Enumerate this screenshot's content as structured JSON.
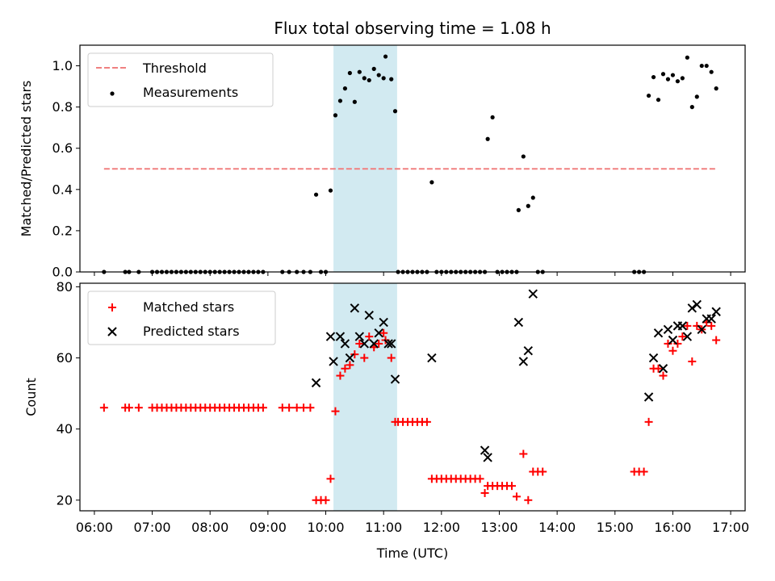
{
  "chart_data": [
    {
      "type": "scatter",
      "title": "Flux total observing time = 1.08 h",
      "xlabel": "",
      "ylabel": "Matched/Predicted stars",
      "xlim": [
        "05:45",
        "17:15"
      ],
      "ylim": [
        0,
        1.1
      ],
      "yticks": [
        "0.0",
        "0.2",
        "0.4",
        "0.6",
        "0.8",
        "1.0"
      ],
      "grid": false,
      "legend": "upper-left",
      "highlight_interval": [
        "10:08",
        "11:14"
      ],
      "highlight_color": "#add8e6",
      "threshold": {
        "name": "Threshold",
        "value": 0.5,
        "x": [
          "06:10",
          "16:45"
        ],
        "color": "#f08080",
        "style": "dashed"
      },
      "series": [
        {
          "name": "Measurements",
          "color": "#000000",
          "marker": "dot",
          "points": [
            [
              "06:10",
              0
            ],
            [
              "06:32",
              0
            ],
            [
              "06:36",
              0
            ],
            [
              "06:46",
              0
            ],
            [
              "07:00",
              0
            ],
            [
              "07:05",
              0
            ],
            [
              "07:10",
              0
            ],
            [
              "07:15",
              0
            ],
            [
              "07:20",
              0
            ],
            [
              "07:25",
              0
            ],
            [
              "07:30",
              0
            ],
            [
              "07:35",
              0
            ],
            [
              "07:40",
              0
            ],
            [
              "07:45",
              0
            ],
            [
              "07:50",
              0
            ],
            [
              "07:55",
              0
            ],
            [
              "08:00",
              0
            ],
            [
              "08:05",
              0
            ],
            [
              "08:10",
              0
            ],
            [
              "08:15",
              0
            ],
            [
              "08:20",
              0
            ],
            [
              "08:25",
              0
            ],
            [
              "08:30",
              0
            ],
            [
              "08:35",
              0
            ],
            [
              "08:40",
              0
            ],
            [
              "08:45",
              0
            ],
            [
              "08:50",
              0
            ],
            [
              "08:55",
              0
            ],
            [
              "09:15",
              0
            ],
            [
              "09:22",
              0
            ],
            [
              "09:30",
              0
            ],
            [
              "09:37",
              0
            ],
            [
              "09:44",
              0
            ],
            [
              "09:50",
              0.375
            ],
            [
              "09:55",
              0
            ],
            [
              "10:00",
              0
            ],
            [
              "10:05",
              0.395
            ],
            [
              "10:10",
              0.76
            ],
            [
              "10:15",
              0.83
            ],
            [
              "10:20",
              0.89
            ],
            [
              "10:25",
              0.965
            ],
            [
              "10:30",
              0.825
            ],
            [
              "10:35",
              0.97
            ],
            [
              "10:40",
              0.94
            ],
            [
              "10:45",
              0.93
            ],
            [
              "10:50",
              0.985
            ],
            [
              "10:55",
              0.955
            ],
            [
              "11:00",
              0.94
            ],
            [
              "11:02",
              1.045
            ],
            [
              "11:08",
              0.935
            ],
            [
              "11:12",
              0.78
            ],
            [
              "11:15",
              0
            ],
            [
              "11:20",
              0
            ],
            [
              "11:25",
              0
            ],
            [
              "11:30",
              0
            ],
            [
              "11:35",
              0
            ],
            [
              "11:40",
              0
            ],
            [
              "11:45",
              0
            ],
            [
              "11:50",
              0.435
            ],
            [
              "11:55",
              0
            ],
            [
              "12:00",
              0
            ],
            [
              "12:05",
              0
            ],
            [
              "12:10",
              0
            ],
            [
              "12:15",
              0
            ],
            [
              "12:20",
              0
            ],
            [
              "12:25",
              0
            ],
            [
              "12:30",
              0
            ],
            [
              "12:35",
              0
            ],
            [
              "12:40",
              0
            ],
            [
              "12:45",
              0
            ],
            [
              "12:48",
              0.645
            ],
            [
              "12:53",
              0.75
            ],
            [
              "12:58",
              0
            ],
            [
              "13:03",
              0
            ],
            [
              "13:08",
              0
            ],
            [
              "13:13",
              0
            ],
            [
              "13:18",
              0
            ],
            [
              "13:20",
              0.3
            ],
            [
              "13:25",
              0.56
            ],
            [
              "13:30",
              0.32
            ],
            [
              "13:35",
              0.36
            ],
            [
              "13:40",
              0
            ],
            [
              "13:45",
              0
            ],
            [
              "15:20",
              0
            ],
            [
              "15:25",
              0
            ],
            [
              "15:30",
              0
            ],
            [
              "15:35",
              0.855
            ],
            [
              "15:40",
              0.945
            ],
            [
              "15:45",
              0.835
            ],
            [
              "15:50",
              0.96
            ],
            [
              "15:55",
              0.935
            ],
            [
              "16:00",
              0.955
            ],
            [
              "16:05",
              0.925
            ],
            [
              "16:10",
              0.94
            ],
            [
              "16:15",
              1.04
            ],
            [
              "16:20",
              0.8
            ],
            [
              "16:25",
              0.85
            ],
            [
              "16:30",
              1.0
            ],
            [
              "16:35",
              1.0
            ],
            [
              "16:40",
              0.97
            ],
            [
              "16:45",
              0.89
            ]
          ]
        }
      ]
    },
    {
      "type": "scatter",
      "title": "",
      "xlabel": "Time (UTC)",
      "ylabel": "Count",
      "xlim": [
        "05:45",
        "17:15"
      ],
      "ylim": [
        17,
        81
      ],
      "yticks": [
        "20",
        "40",
        "60",
        "80"
      ],
      "xticks": [
        "06:00",
        "07:00",
        "08:00",
        "09:00",
        "10:00",
        "11:00",
        "12:00",
        "13:00",
        "14:00",
        "15:00",
        "16:00",
        "17:00"
      ],
      "grid": false,
      "legend": "upper-left",
      "highlight_interval": [
        "10:08",
        "11:14"
      ],
      "highlight_color": "#add8e6",
      "series": [
        {
          "name": "Matched stars",
          "color": "#ff0000",
          "marker": "plus",
          "points": [
            [
              "06:10",
              46
            ],
            [
              "06:32",
              46
            ],
            [
              "06:36",
              46
            ],
            [
              "06:46",
              46
            ],
            [
              "07:00",
              46
            ],
            [
              "07:05",
              46
            ],
            [
              "07:10",
              46
            ],
            [
              "07:15",
              46
            ],
            [
              "07:20",
              46
            ],
            [
              "07:25",
              46
            ],
            [
              "07:30",
              46
            ],
            [
              "07:35",
              46
            ],
            [
              "07:40",
              46
            ],
            [
              "07:45",
              46
            ],
            [
              "07:50",
              46
            ],
            [
              "07:55",
              46
            ],
            [
              "08:00",
              46
            ],
            [
              "08:05",
              46
            ],
            [
              "08:10",
              46
            ],
            [
              "08:15",
              46
            ],
            [
              "08:20",
              46
            ],
            [
              "08:25",
              46
            ],
            [
              "08:30",
              46
            ],
            [
              "08:35",
              46
            ],
            [
              "08:40",
              46
            ],
            [
              "08:45",
              46
            ],
            [
              "08:50",
              46
            ],
            [
              "08:55",
              46
            ],
            [
              "09:15",
              46
            ],
            [
              "09:22",
              46
            ],
            [
              "09:30",
              46
            ],
            [
              "09:37",
              46
            ],
            [
              "09:44",
              46
            ],
            [
              "09:50",
              20
            ],
            [
              "09:55",
              20
            ],
            [
              "10:00",
              20
            ],
            [
              "10:05",
              26
            ],
            [
              "10:10",
              45
            ],
            [
              "10:15",
              55
            ],
            [
              "10:20",
              57
            ],
            [
              "10:25",
              58
            ],
            [
              "10:30",
              61
            ],
            [
              "10:35",
              64
            ],
            [
              "10:40",
              60
            ],
            [
              "10:45",
              66
            ],
            [
              "10:50",
              63
            ],
            [
              "10:55",
              64
            ],
            [
              "11:00",
              67
            ],
            [
              "11:02",
              65
            ],
            [
              "11:08",
              60
            ],
            [
              "11:12",
              42
            ],
            [
              "11:15",
              42
            ],
            [
              "11:20",
              42
            ],
            [
              "11:25",
              42
            ],
            [
              "11:30",
              42
            ],
            [
              "11:35",
              42
            ],
            [
              "11:40",
              42
            ],
            [
              "11:45",
              42
            ],
            [
              "11:50",
              26
            ],
            [
              "11:55",
              26
            ],
            [
              "12:00",
              26
            ],
            [
              "12:05",
              26
            ],
            [
              "12:10",
              26
            ],
            [
              "12:15",
              26
            ],
            [
              "12:20",
              26
            ],
            [
              "12:25",
              26
            ],
            [
              "12:30",
              26
            ],
            [
              "12:35",
              26
            ],
            [
              "12:40",
              26
            ],
            [
              "12:45",
              22
            ],
            [
              "12:48",
              24
            ],
            [
              "12:53",
              24
            ],
            [
              "12:58",
              24
            ],
            [
              "13:03",
              24
            ],
            [
              "13:08",
              24
            ],
            [
              "13:13",
              24
            ],
            [
              "13:18",
              21
            ],
            [
              "13:25",
              33
            ],
            [
              "13:30",
              20
            ],
            [
              "13:35",
              28
            ],
            [
              "13:40",
              28
            ],
            [
              "13:45",
              28
            ],
            [
              "15:20",
              28
            ],
            [
              "15:25",
              28
            ],
            [
              "15:30",
              28
            ],
            [
              "15:35",
              42
            ],
            [
              "15:40",
              57
            ],
            [
              "15:45",
              57
            ],
            [
              "15:50",
              55
            ],
            [
              "15:55",
              64
            ],
            [
              "16:00",
              62
            ],
            [
              "16:05",
              64
            ],
            [
              "16:10",
              66
            ],
            [
              "16:15",
              69
            ],
            [
              "16:20",
              59
            ],
            [
              "16:25",
              69
            ],
            [
              "16:30",
              68
            ],
            [
              "16:35",
              70
            ],
            [
              "16:40",
              69
            ],
            [
              "16:45",
              65
            ]
          ]
        },
        {
          "name": "Predicted stars",
          "color": "#000000",
          "marker": "x",
          "points": [
            [
              "09:50",
              53
            ],
            [
              "10:05",
              66
            ],
            [
              "10:08",
              59
            ],
            [
              "10:15",
              66
            ],
            [
              "10:20",
              64
            ],
            [
              "10:25",
              60
            ],
            [
              "10:30",
              74
            ],
            [
              "10:35",
              66
            ],
            [
              "10:40",
              64
            ],
            [
              "10:45",
              72
            ],
            [
              "10:50",
              64
            ],
            [
              "10:55",
              67
            ],
            [
              "11:00",
              70
            ],
            [
              "11:05",
              64
            ],
            [
              "11:08",
              64
            ],
            [
              "11:12",
              54
            ],
            [
              "11:50",
              60
            ],
            [
              "12:45",
              34
            ],
            [
              "12:48",
              32
            ],
            [
              "13:20",
              70
            ],
            [
              "13:25",
              59
            ],
            [
              "13:30",
              62
            ],
            [
              "13:35",
              78
            ],
            [
              "15:35",
              49
            ],
            [
              "15:40",
              60
            ],
            [
              "15:45",
              67
            ],
            [
              "15:50",
              57
            ],
            [
              "15:55",
              68
            ],
            [
              "16:00",
              65
            ],
            [
              "16:05",
              69
            ],
            [
              "16:10",
              69
            ],
            [
              "16:15",
              66
            ],
            [
              "16:20",
              74
            ],
            [
              "16:25",
              75
            ],
            [
              "16:30",
              68
            ],
            [
              "16:35",
              71
            ],
            [
              "16:40",
              71
            ],
            [
              "16:45",
              73
            ]
          ]
        }
      ]
    }
  ]
}
